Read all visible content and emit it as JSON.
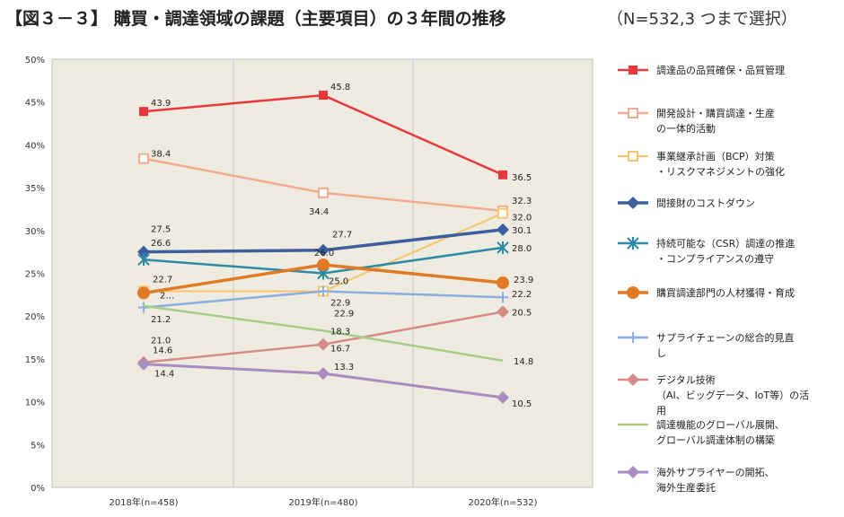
{
  "header": {
    "title": "【図３－３】 購買・調達領域の課題（主要項目）の３年間の推移",
    "subtitle": "（N=532,3 つまで選択）"
  },
  "chart_data": {
    "type": "line",
    "categories": [
      "2018年(n=458)",
      "2019年(n=480)",
      "2020年(n=532)"
    ],
    "ylim": [
      0,
      50
    ],
    "yticks": [
      "0%",
      "5%",
      "10%",
      "15%",
      "20%",
      "25%",
      "30%",
      "35%",
      "40%",
      "45%",
      "50%"
    ],
    "grid": "vertical",
    "legend_position": "right",
    "series": [
      {
        "name": "調達品の品質確保・品質管理",
        "values": [
          43.9,
          45.8,
          36.5
        ],
        "color": "#e8383d",
        "marker": "square",
        "width": 2.5,
        "labels": [
          "43.9",
          "45.8",
          "36.5"
        ]
      },
      {
        "name": "開発設計・購買調達・生産\nの一体的活動",
        "values": [
          38.4,
          34.4,
          32.3
        ],
        "color": "#f2aa90",
        "marker": "square-open",
        "width": 2.5,
        "labels": [
          "38.4",
          "34.4",
          "32.3"
        ]
      },
      {
        "name": "事業継承計画（BCP）対策\n・リスクマネジメントの強化",
        "values": [
          22.9,
          22.9,
          32.0
        ],
        "color": "#f9c46b",
        "marker": "square-open",
        "width": 2,
        "labels": [
          "2…",
          "22.9",
          "32.0"
        ]
      },
      {
        "name": "間接財のコストダウン",
        "values": [
          27.5,
          27.7,
          30.1
        ],
        "color": "#3c5f9e",
        "marker": "diamond",
        "width": 3.5,
        "labels": [
          "27.5",
          "27.7",
          "30.1"
        ]
      },
      {
        "name": "持続可能な（CSR）調達の推進\n・コンプライアンスの遵守",
        "values": [
          26.6,
          25.0,
          28.0
        ],
        "color": "#2d8aa6",
        "marker": "star",
        "width": 2.5,
        "labels": [
          "26.6",
          "25.0",
          "28.0"
        ]
      },
      {
        "name": "購買調達部門の人材獲得・育成",
        "values": [
          22.7,
          26.0,
          23.9
        ],
        "color": "#e07a25",
        "marker": "circle",
        "width": 3.5,
        "labels": [
          "22.7",
          "26.0",
          "23.9"
        ]
      },
      {
        "name": "サプライチェーンの総合的見直\nし",
        "values": [
          21.0,
          22.9,
          22.2
        ],
        "color": "#8aaee0",
        "marker": "plus",
        "width": 2.5,
        "labels": [
          "21.0",
          "22.9",
          "22.2"
        ]
      },
      {
        "name": "デジタル技術\n（AI、ビッグデータ、IoT等）の活\n用",
        "values": [
          14.6,
          16.7,
          20.5
        ],
        "color": "#d68a8a",
        "marker": "diamond",
        "width": 2.5,
        "labels": [
          "14.6",
          "16.7",
          "20.5"
        ]
      },
      {
        "name": "調達機能のグローバル展開、\nグローバル調達体制の構築",
        "values": [
          21.2,
          18.3,
          14.8
        ],
        "color": "#a9cc86",
        "marker": "none",
        "width": 2.5,
        "labels": [
          "21.2",
          "18.3",
          "14.8"
        ]
      },
      {
        "name": "海外サプライヤーの開拓、\n海外生産委託",
        "values": [
          14.4,
          13.3,
          10.5
        ],
        "color": "#a98cc0",
        "marker": "diamond",
        "width": 3,
        "labels": [
          "14.4",
          "13.3",
          "10.5"
        ]
      }
    ]
  }
}
